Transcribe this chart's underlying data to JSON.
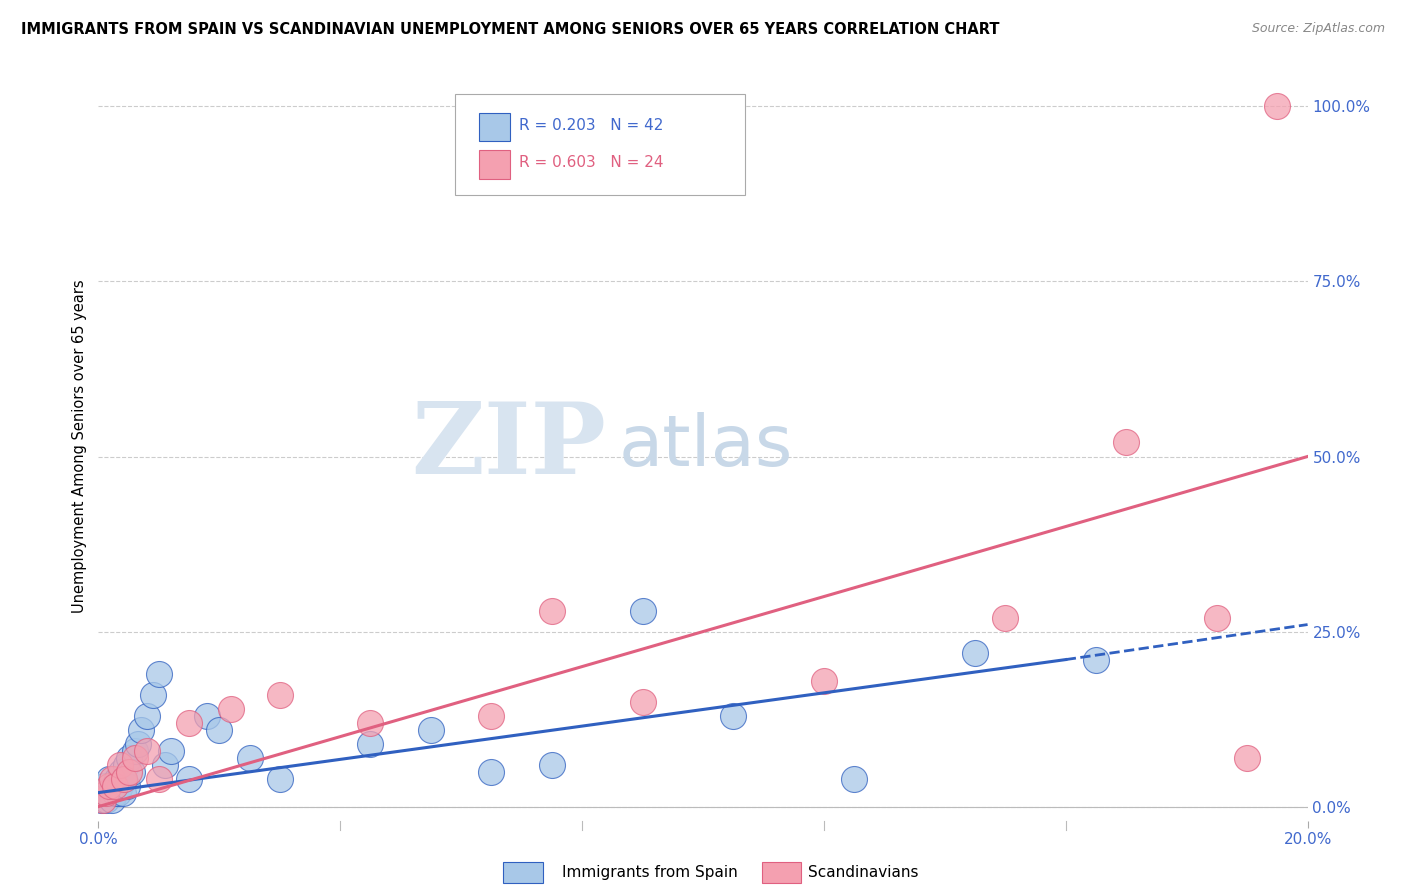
{
  "title": "IMMIGRANTS FROM SPAIN VS SCANDINAVIAN UNEMPLOYMENT AMONG SENIORS OVER 65 YEARS CORRELATION CHART",
  "source": "Source: ZipAtlas.com",
  "ylabel": "Unemployment Among Seniors over 65 years",
  "legend1_r": "R = 0.203",
  "legend1_n": "N = 42",
  "legend2_r": "R = 0.603",
  "legend2_n": "N = 24",
  "legend1_label": "Immigrants from Spain",
  "legend2_label": "Scandinavians",
  "blue_color": "#A8C8E8",
  "pink_color": "#F4A0B0",
  "blue_line_color": "#3060C0",
  "pink_line_color": "#E06080",
  "blue_text_color": "#4169CD",
  "pink_text_color": "#E06080",
  "right_axis_color": "#4169CD",
  "right_axis_labels": [
    "100.0%",
    "75.0%",
    "50.0%",
    "25.0%",
    "0.0%"
  ],
  "right_axis_values": [
    100,
    75,
    50,
    25,
    0
  ],
  "xlim": [
    0,
    20
  ],
  "ylim": [
    -2,
    105
  ],
  "blue_scatter_x": [
    0.05,
    0.08,
    0.1,
    0.12,
    0.15,
    0.18,
    0.2,
    0.22,
    0.25,
    0.28,
    0.3,
    0.32,
    0.35,
    0.38,
    0.4,
    0.42,
    0.45,
    0.48,
    0.5,
    0.55,
    0.6,
    0.65,
    0.7,
    0.8,
    0.9,
    1.0,
    1.1,
    1.2,
    1.5,
    1.8,
    2.0,
    2.5,
    3.0,
    4.5,
    5.5,
    6.5,
    7.5,
    9.0,
    10.5,
    12.5,
    14.5,
    16.5
  ],
  "blue_scatter_y": [
    1,
    2,
    3,
    1,
    2,
    4,
    2,
    1,
    3,
    2,
    4,
    2,
    3,
    5,
    2,
    4,
    6,
    3,
    7,
    5,
    8,
    9,
    11,
    13,
    16,
    19,
    6,
    8,
    4,
    13,
    11,
    7,
    4,
    9,
    11,
    5,
    6,
    28,
    13,
    4,
    22,
    21
  ],
  "pink_scatter_x": [
    0.08,
    0.12,
    0.18,
    0.22,
    0.28,
    0.35,
    0.42,
    0.5,
    0.6,
    0.8,
    1.0,
    1.5,
    2.2,
    3.0,
    4.5,
    6.5,
    7.5,
    9.0,
    12.0,
    15.0,
    17.0,
    18.5,
    19.0,
    19.5
  ],
  "pink_scatter_y": [
    1,
    2,
    3,
    4,
    3,
    6,
    4,
    5,
    7,
    8,
    4,
    12,
    14,
    16,
    12,
    13,
    28,
    15,
    18,
    27,
    52,
    27,
    7,
    100
  ],
  "blue_line_x0": 0,
  "blue_line_y0": 2,
  "blue_line_x1": 16,
  "blue_line_y1": 21,
  "blue_dash_x1": 20,
  "blue_dash_y1": 26,
  "pink_line_x0": 0,
  "pink_line_y0": 0,
  "pink_line_x1": 20,
  "pink_line_y1": 50,
  "watermark_zip": "ZIP",
  "watermark_atlas": "atlas",
  "watermark_color": "#D8E4F0",
  "watermark_atlas_color": "#C8D8E8"
}
